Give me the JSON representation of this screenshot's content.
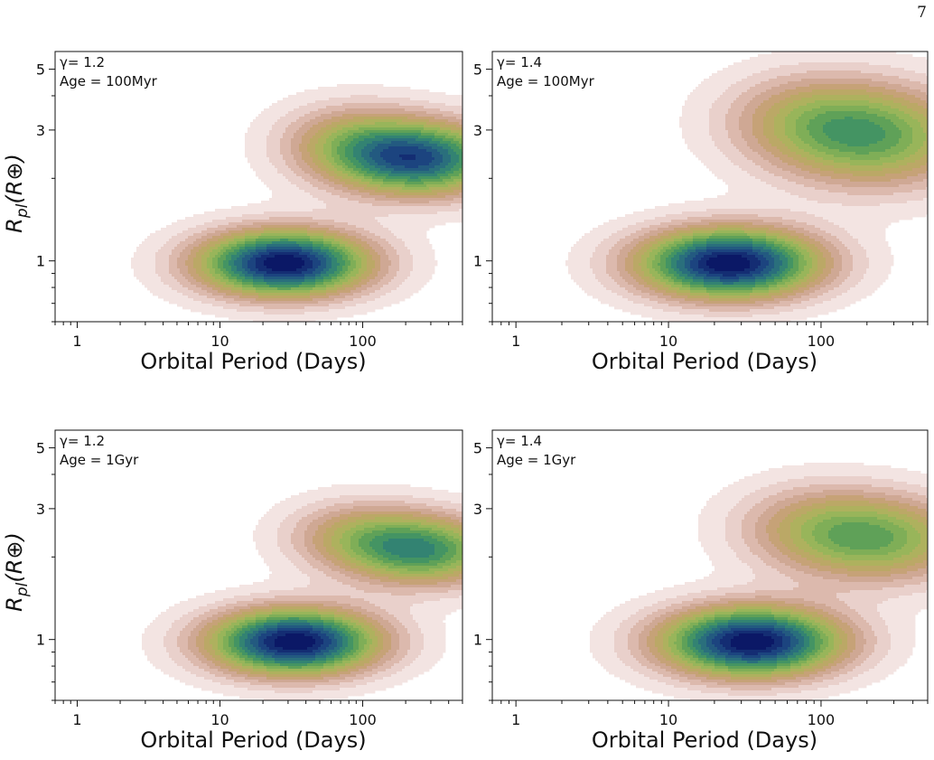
{
  "page_number": "7",
  "palette": {
    "levels": [
      "#f3e4e2",
      "#e9d0cb",
      "#dcb9ad",
      "#cfa894",
      "#c6a277",
      "#bba866",
      "#aeb15e",
      "#98b55a",
      "#7fae57",
      "#5fa158",
      "#449463",
      "#338372",
      "#2a6f7c",
      "#235a80",
      "#1c447f",
      "#142d73",
      "#0b1866"
    ],
    "axis_color": "#111111"
  },
  "chart_data": [
    {
      "type": "contour",
      "panel": "top-left",
      "annotation": [
        "γ= 1.2",
        "Age = 100Myr"
      ],
      "xlabel": "Orbital Period (Days)",
      "ylabel": "R_pl(R⊕)",
      "xscale": "log",
      "yscale": "log",
      "xlim": [
        0.7,
        500
      ],
      "ylim": [
        0.6,
        5.8
      ],
      "xticks": [
        1,
        10,
        100
      ],
      "yticks": [
        1,
        3,
        5
      ],
      "density_peaks": [
        {
          "period": 28,
          "radius": 0.98,
          "weight": 1.0,
          "spread_logP": 0.42,
          "spread_logR": 0.085
        },
        {
          "period": 260,
          "radius": 2.35,
          "weight": 0.78,
          "spread_logP": 0.4,
          "spread_logR": 0.095
        },
        {
          "period": 80,
          "radius": 2.7,
          "weight": 0.32,
          "spread_logP": 0.35,
          "spread_logR": 0.1
        }
      ]
    },
    {
      "type": "contour",
      "panel": "top-right",
      "annotation": [
        "γ= 1.4",
        "Age = 100Myr"
      ],
      "xlabel": "Orbital Period (Days)",
      "ylabel": "",
      "xscale": "log",
      "yscale": "log",
      "xlim": [
        0.7,
        500
      ],
      "ylim": [
        0.6,
        5.8
      ],
      "xticks": [
        1,
        10,
        100
      ],
      "yticks": [
        1,
        3,
        5
      ],
      "density_peaks": [
        {
          "period": 25,
          "radius": 0.98,
          "weight": 1.0,
          "spread_logP": 0.42,
          "spread_logR": 0.09
        },
        {
          "period": 240,
          "radius": 2.8,
          "weight": 0.5,
          "spread_logP": 0.45,
          "spread_logR": 0.13
        },
        {
          "period": 80,
          "radius": 3.3,
          "weight": 0.28,
          "spread_logP": 0.4,
          "spread_logR": 0.12
        }
      ]
    },
    {
      "type": "contour",
      "panel": "bottom-left",
      "annotation": [
        "γ= 1.2",
        "Age = 1Gyr"
      ],
      "xlabel": "Orbital Period (Days)",
      "ylabel": "R_pl(R⊕)",
      "xscale": "log",
      "yscale": "log",
      "xlim": [
        0.7,
        500
      ],
      "ylim": [
        0.6,
        5.8
      ],
      "xticks": [
        1,
        10,
        100
      ],
      "yticks": [
        1,
        3,
        5
      ],
      "density_peaks": [
        {
          "period": 33,
          "radius": 0.98,
          "weight": 1.0,
          "spread_logP": 0.42,
          "spread_logR": 0.085
        },
        {
          "period": 280,
          "radius": 2.1,
          "weight": 0.6,
          "spread_logP": 0.38,
          "spread_logR": 0.09
        },
        {
          "period": 90,
          "radius": 2.4,
          "weight": 0.3,
          "spread_logP": 0.35,
          "spread_logR": 0.09
        }
      ]
    },
    {
      "type": "contour",
      "panel": "bottom-right",
      "annotation": [
        "γ= 1.4",
        "Age = 1Gyr"
      ],
      "xlabel": "Orbital Period (Days)",
      "ylabel": "",
      "xscale": "log",
      "yscale": "log",
      "xlim": [
        0.7,
        500
      ],
      "ylim": [
        0.6,
        5.8
      ],
      "xticks": [
        1,
        10,
        100
      ],
      "yticks": [
        1,
        3,
        5
      ],
      "density_peaks": [
        {
          "period": 35,
          "radius": 0.98,
          "weight": 1.0,
          "spread_logP": 0.42,
          "spread_logR": 0.09
        },
        {
          "period": 260,
          "radius": 2.3,
          "weight": 0.46,
          "spread_logP": 0.42,
          "spread_logR": 0.11
        },
        {
          "period": 90,
          "radius": 2.6,
          "weight": 0.26,
          "spread_logP": 0.38,
          "spread_logR": 0.11
        }
      ]
    }
  ]
}
